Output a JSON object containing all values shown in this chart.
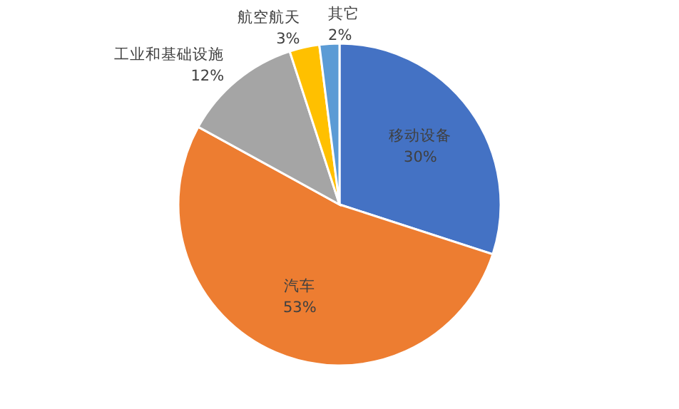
{
  "chart_data": {
    "type": "pie",
    "categories": [
      "移动设备",
      "汽车",
      "工业和基础设施",
      "航空航天",
      "其它"
    ],
    "values": [
      30,
      53,
      12,
      3,
      2
    ],
    "value_labels": [
      "30%",
      "53%",
      "12%",
      "3%",
      "2%"
    ],
    "colors": [
      "#4472c4",
      "#ed7d31",
      "#a5a5a5",
      "#ffc000",
      "#5b9bd5"
    ],
    "legend": false
  }
}
